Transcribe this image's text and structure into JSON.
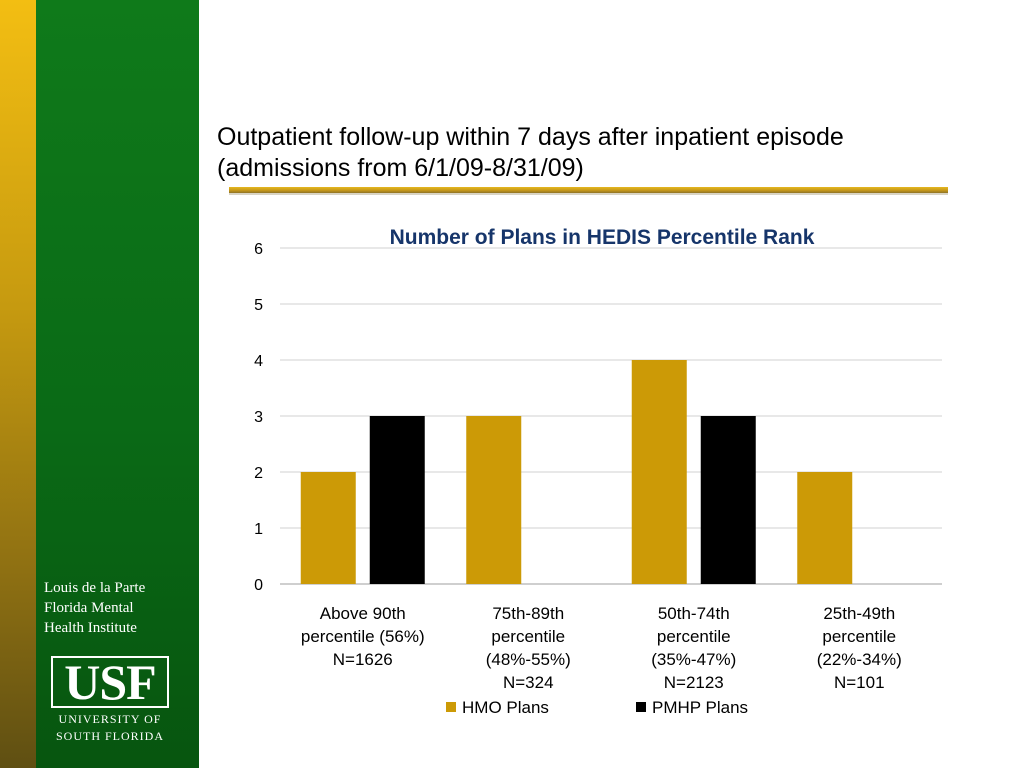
{
  "slide": {
    "title_line1": "Outpatient follow-up within 7 days after inpatient episode",
    "title_line2": "(admissions from 6/1/09-8/31/09)"
  },
  "sidebar": {
    "institute_lines": [
      "Louis de la Parte",
      "Florida Mental",
      "Health Institute"
    ],
    "logo": {
      "letters": "USF",
      "line1": "UNIVERSITY OF",
      "line2": "SOUTH FLORIDA"
    }
  },
  "colors": {
    "gold": "#cc9a06",
    "black": "#000000",
    "green": "#0a6a16",
    "title_blue": "#16356a"
  },
  "chart_data": {
    "type": "bar",
    "title": "Number of Plans in HEDIS Percentile Rank",
    "categories": [
      [
        "Above 90th",
        "percentile (56%)",
        "N=1626"
      ],
      [
        "75th-89th",
        "percentile",
        "(48%-55%)",
        "N=324"
      ],
      [
        "50th-74th",
        "percentile",
        "(35%-47%)",
        "N=2123"
      ],
      [
        "25th-49th",
        "percentile",
        "(22%-34%)",
        "N=101"
      ]
    ],
    "series": [
      {
        "name": "HMO Plans",
        "values": [
          2,
          3,
          4,
          2
        ],
        "color": "#cc9a06"
      },
      {
        "name": "PMHP Plans",
        "values": [
          3,
          0,
          3,
          0
        ],
        "color": "#000000"
      }
    ],
    "ylim": [
      0,
      6
    ],
    "yticks": [
      0,
      1,
      2,
      3,
      4,
      5,
      6
    ],
    "grid": true,
    "legend": "bottom"
  }
}
